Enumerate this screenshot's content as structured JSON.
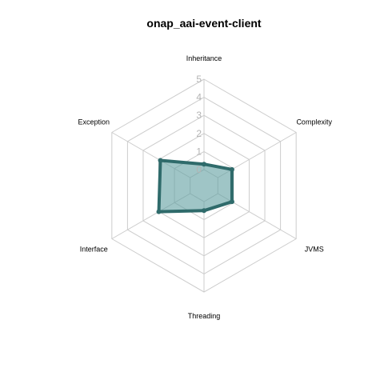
{
  "chart_data": {
    "type": "radar",
    "title": "onap_aai-event-client",
    "axes": [
      "Inheritance",
      "Complexity",
      "JVMS",
      "Threading",
      "Interface",
      "Exception"
    ],
    "ticks": [
      "0",
      "1",
      "2",
      "3",
      "4",
      "5"
    ],
    "range": [
      0,
      5
    ],
    "series": [
      {
        "values": [
          0.3,
          0.9,
          0.9,
          0.5,
          2.0,
          1.9
        ],
        "line_color": "#2f6b6b",
        "fill_color": "#5f9ea0"
      }
    ],
    "grid_color": "#cccccc"
  }
}
